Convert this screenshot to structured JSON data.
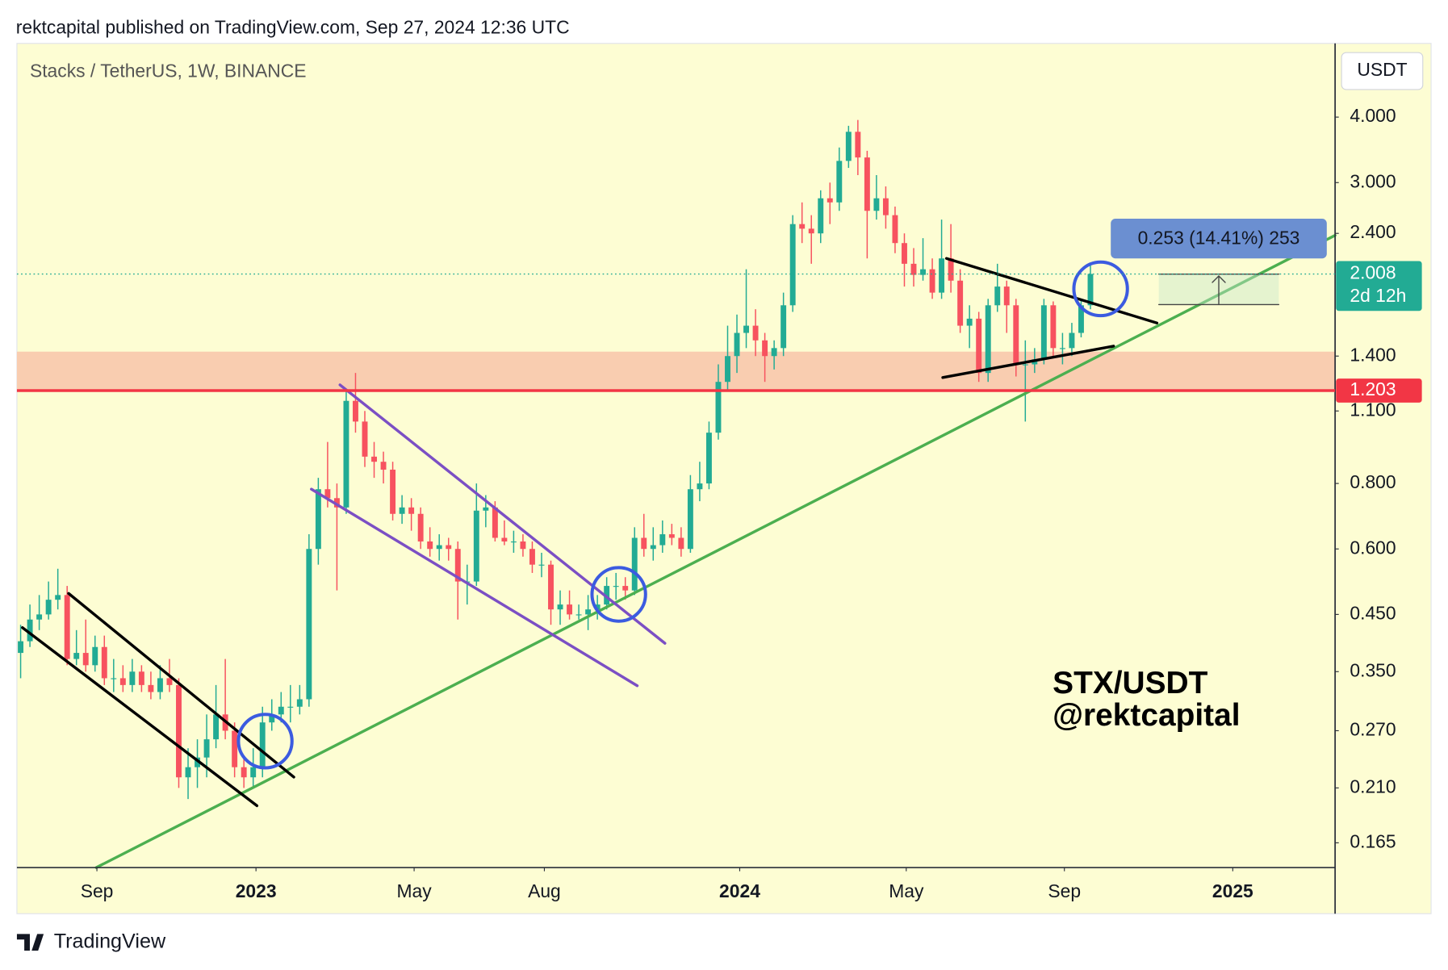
{
  "header": "rektcapital published on TradingView.com, Sep 27, 2024 12:36 UTC",
  "chart_data": {
    "type": "candlestick",
    "title": "Stacks / TetherUS, 1W, BINANCE",
    "currency": "USDT",
    "log_scale": true,
    "up_color": "#22ab94",
    "down_color": "#f7525f",
    "ylim": [
      0.148,
      5.53
    ],
    "yticks": [
      {
        "value": 0.165,
        "label": "0.165"
      },
      {
        "value": 0.21,
        "label": "0.210"
      },
      {
        "value": 0.27,
        "label": "0.270"
      },
      {
        "value": 0.35,
        "label": "0.350"
      },
      {
        "value": 0.45,
        "label": "0.450"
      },
      {
        "value": 0.6,
        "label": "0.600"
      },
      {
        "value": 0.8,
        "label": "0.800"
      },
      {
        "value": 1.1,
        "label": "1.100"
      },
      {
        "value": 1.4,
        "label": "1.400"
      },
      {
        "value": 2.4,
        "label": "2.400"
      },
      {
        "value": 3,
        "label": "3.000"
      },
      {
        "value": 4,
        "label": "4.000"
      }
    ],
    "xlim": [
      -0.4,
      141.3
    ],
    "xticks": [
      {
        "value": 8.2,
        "label": "Sep"
      },
      {
        "value": 25.3,
        "label": "2023"
      },
      {
        "value": 42.3,
        "label": "May"
      },
      {
        "value": 56.3,
        "label": "Aug"
      },
      {
        "value": 77.3,
        "label": "2024"
      },
      {
        "value": 95.2,
        "label": "May"
      },
      {
        "value": 112.2,
        "label": "Sep"
      },
      {
        "value": 130.3,
        "label": "2025"
      }
    ],
    "candles": [
      [
        0.38,
        0.43,
        0.34,
        0.4
      ],
      [
        0.4,
        0.47,
        0.39,
        0.44
      ],
      [
        0.44,
        0.49,
        0.42,
        0.45
      ],
      [
        0.45,
        0.52,
        0.44,
        0.48
      ],
      [
        0.48,
        0.55,
        0.46,
        0.49
      ],
      [
        0.49,
        0.51,
        0.36,
        0.37
      ],
      [
        0.37,
        0.42,
        0.36,
        0.38
      ],
      [
        0.38,
        0.44,
        0.35,
        0.36
      ],
      [
        0.36,
        0.41,
        0.35,
        0.39
      ],
      [
        0.39,
        0.41,
        0.33,
        0.34
      ],
      [
        0.34,
        0.37,
        0.32,
        0.34
      ],
      [
        0.34,
        0.36,
        0.32,
        0.33
      ],
      [
        0.33,
        0.37,
        0.32,
        0.35
      ],
      [
        0.35,
        0.36,
        0.32,
        0.33
      ],
      [
        0.33,
        0.35,
        0.31,
        0.32
      ],
      [
        0.32,
        0.36,
        0.31,
        0.34
      ],
      [
        0.34,
        0.37,
        0.32,
        0.33
      ],
      [
        0.33,
        0.34,
        0.21,
        0.22
      ],
      [
        0.22,
        0.25,
        0.2,
        0.23
      ],
      [
        0.23,
        0.26,
        0.21,
        0.24
      ],
      [
        0.24,
        0.29,
        0.22,
        0.26
      ],
      [
        0.26,
        0.33,
        0.25,
        0.29
      ],
      [
        0.29,
        0.37,
        0.26,
        0.27
      ],
      [
        0.27,
        0.28,
        0.22,
        0.23
      ],
      [
        0.23,
        0.24,
        0.21,
        0.22
      ],
      [
        0.22,
        0.25,
        0.21,
        0.23
      ],
      [
        0.23,
        0.3,
        0.22,
        0.28
      ],
      [
        0.28,
        0.31,
        0.27,
        0.29
      ],
      [
        0.29,
        0.32,
        0.28,
        0.3
      ],
      [
        0.3,
        0.33,
        0.28,
        0.3
      ],
      [
        0.3,
        0.33,
        0.29,
        0.31
      ],
      [
        0.31,
        0.64,
        0.3,
        0.6
      ],
      [
        0.6,
        0.82,
        0.56,
        0.78
      ],
      [
        0.78,
        0.96,
        0.72,
        0.75
      ],
      [
        0.75,
        0.8,
        0.5,
        0.72
      ],
      [
        0.72,
        1.2,
        0.7,
        1.15
      ],
      [
        1.15,
        1.3,
        1.0,
        1.05
      ],
      [
        1.05,
        1.1,
        0.86,
        0.9
      ],
      [
        0.9,
        0.96,
        0.82,
        0.88
      ],
      [
        0.88,
        0.92,
        0.8,
        0.85
      ],
      [
        0.85,
        0.88,
        0.68,
        0.7
      ],
      [
        0.7,
        0.76,
        0.67,
        0.72
      ],
      [
        0.72,
        0.75,
        0.65,
        0.7
      ],
      [
        0.7,
        0.72,
        0.6,
        0.62
      ],
      [
        0.62,
        0.66,
        0.58,
        0.6
      ],
      [
        0.6,
        0.64,
        0.57,
        0.61
      ],
      [
        0.61,
        0.63,
        0.57,
        0.6
      ],
      [
        0.6,
        0.62,
        0.44,
        0.52
      ],
      [
        0.52,
        0.56,
        0.47,
        0.52
      ],
      [
        0.52,
        0.8,
        0.51,
        0.71
      ],
      [
        0.71,
        0.76,
        0.66,
        0.72
      ],
      [
        0.72,
        0.74,
        0.62,
        0.63
      ],
      [
        0.63,
        0.68,
        0.61,
        0.62
      ],
      [
        0.62,
        0.65,
        0.59,
        0.62
      ],
      [
        0.62,
        0.64,
        0.58,
        0.6
      ],
      [
        0.6,
        0.62,
        0.54,
        0.56
      ],
      [
        0.56,
        0.59,
        0.53,
        0.56
      ],
      [
        0.56,
        0.57,
        0.43,
        0.46
      ],
      [
        0.46,
        0.5,
        0.43,
        0.47
      ],
      [
        0.47,
        0.5,
        0.44,
        0.45
      ],
      [
        0.45,
        0.47,
        0.44,
        0.45
      ],
      [
        0.45,
        0.49,
        0.42,
        0.46
      ],
      [
        0.46,
        0.49,
        0.44,
        0.47
      ],
      [
        0.47,
        0.53,
        0.46,
        0.51
      ],
      [
        0.51,
        0.54,
        0.48,
        0.51
      ],
      [
        0.51,
        0.53,
        0.48,
        0.5
      ],
      [
        0.5,
        0.66,
        0.49,
        0.63
      ],
      [
        0.63,
        0.7,
        0.58,
        0.6
      ],
      [
        0.6,
        0.66,
        0.57,
        0.61
      ],
      [
        0.61,
        0.68,
        0.59,
        0.64
      ],
      [
        0.64,
        0.67,
        0.61,
        0.63
      ],
      [
        0.63,
        0.66,
        0.58,
        0.6
      ],
      [
        0.6,
        0.83,
        0.59,
        0.78
      ],
      [
        0.78,
        0.88,
        0.74,
        0.8
      ],
      [
        0.8,
        1.05,
        0.78,
        1.0
      ],
      [
        1.0,
        1.35,
        0.97,
        1.25
      ],
      [
        1.25,
        1.6,
        1.2,
        1.4
      ],
      [
        1.4,
        1.68,
        1.3,
        1.55
      ],
      [
        1.55,
        2.05,
        1.45,
        1.6
      ],
      [
        1.6,
        1.72,
        1.4,
        1.5
      ],
      [
        1.5,
        1.55,
        1.25,
        1.4
      ],
      [
        1.4,
        1.5,
        1.32,
        1.45
      ],
      [
        1.45,
        1.85,
        1.4,
        1.75
      ],
      [
        1.75,
        2.6,
        1.7,
        2.5
      ],
      [
        2.5,
        2.75,
        2.3,
        2.45
      ],
      [
        2.45,
        2.6,
        2.1,
        2.4
      ],
      [
        2.4,
        2.9,
        2.3,
        2.8
      ],
      [
        2.8,
        3.0,
        2.5,
        2.75
      ],
      [
        2.75,
        3.5,
        2.65,
        3.3
      ],
      [
        3.3,
        3.85,
        3.2,
        3.75
      ],
      [
        3.75,
        3.95,
        3.1,
        3.35
      ],
      [
        3.35,
        3.45,
        2.15,
        2.65
      ],
      [
        2.65,
        3.1,
        2.55,
        2.8
      ],
      [
        2.8,
        2.95,
        2.45,
        2.6
      ],
      [
        2.6,
        2.7,
        2.2,
        2.3
      ],
      [
        2.3,
        2.4,
        1.9,
        2.1
      ],
      [
        2.1,
        2.25,
        1.9,
        2.0
      ],
      [
        2.0,
        2.35,
        1.95,
        2.05
      ],
      [
        2.05,
        2.15,
        1.8,
        1.85
      ],
      [
        1.85,
        2.55,
        1.8,
        2.15
      ],
      [
        2.15,
        2.5,
        1.85,
        1.95
      ],
      [
        1.95,
        2.05,
        1.55,
        1.6
      ],
      [
        1.6,
        1.75,
        1.45,
        1.65
      ],
      [
        1.65,
        1.7,
        1.25,
        1.3
      ],
      [
        1.3,
        1.8,
        1.25,
        1.75
      ],
      [
        1.75,
        2.1,
        1.7,
        1.9
      ],
      [
        1.9,
        1.95,
        1.55,
        1.75
      ],
      [
        1.75,
        1.8,
        1.28,
        1.35
      ],
      [
        1.35,
        1.5,
        1.05,
        1.35
      ],
      [
        1.35,
        1.45,
        1.3,
        1.38
      ],
      [
        1.38,
        1.8,
        1.35,
        1.75
      ],
      [
        1.75,
        1.78,
        1.4,
        1.45
      ],
      [
        1.45,
        1.55,
        1.35,
        1.45
      ],
      [
        1.45,
        1.62,
        1.4,
        1.55
      ],
      [
        1.55,
        1.8,
        1.52,
        1.75
      ],
      [
        1.75,
        2.1,
        1.72,
        2.008
      ]
    ],
    "last_price": 2.008,
    "countdown": "2d 12h",
    "level": 1.203,
    "measure": "0.253 (14.41%) 253",
    "watermark": [
      "STX/USDT",
      "@rektcapital"
    ]
  },
  "footer": "TradingView"
}
